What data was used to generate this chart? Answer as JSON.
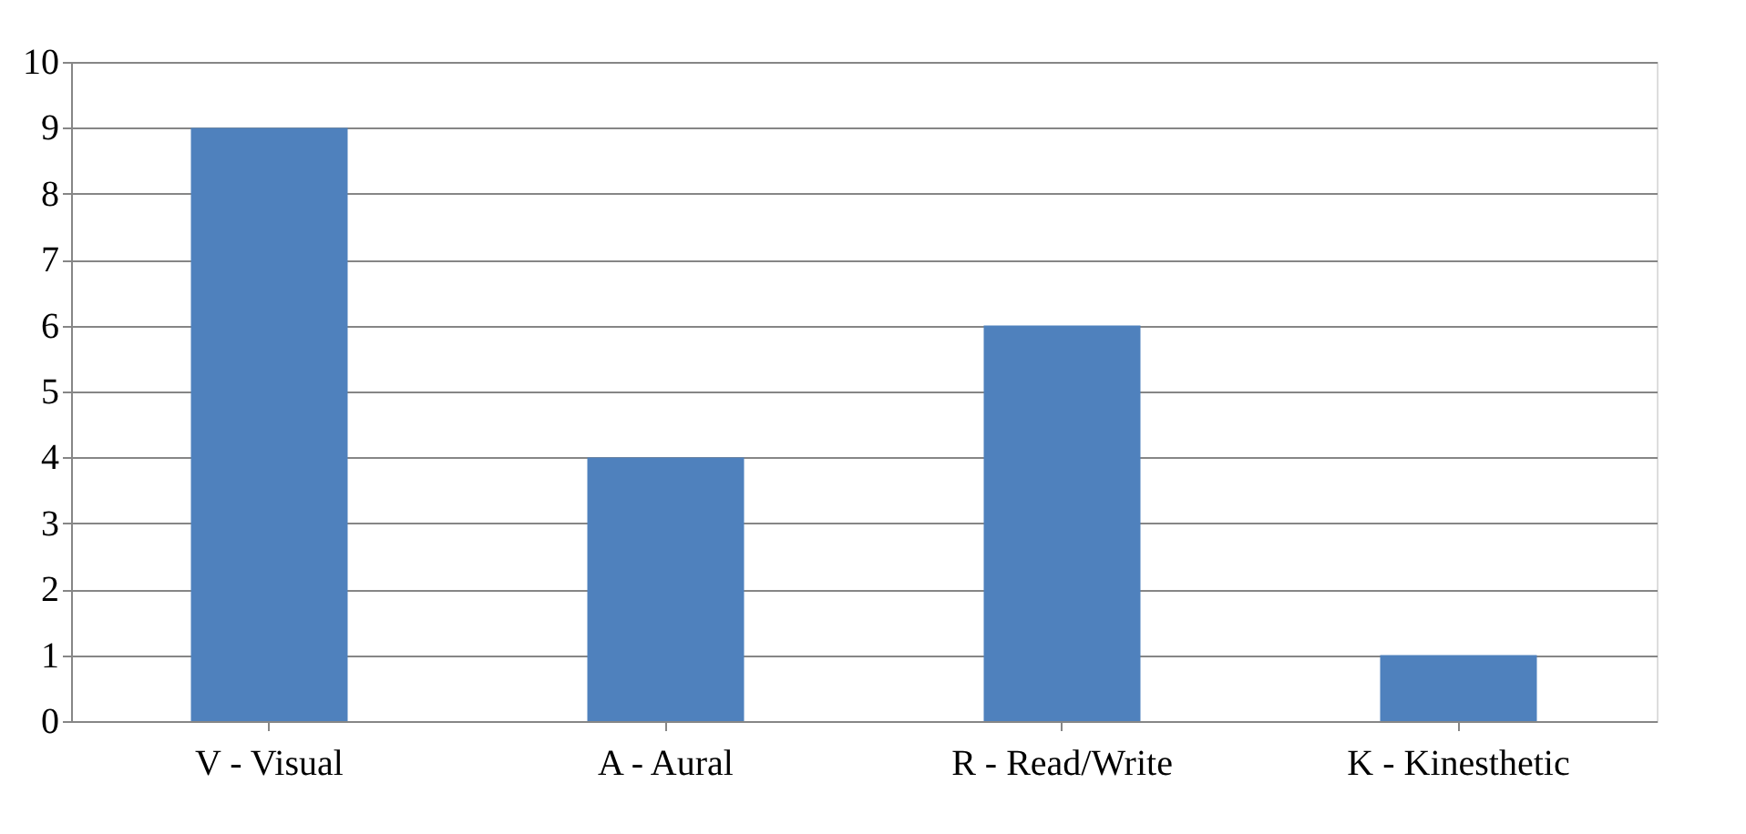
{
  "chart_data": {
    "type": "bar",
    "categories": [
      "V - Visual",
      "A - Aural",
      "R - Read/Write",
      "K - Kinesthetic"
    ],
    "values": [
      9,
      4,
      6,
      1
    ],
    "color": "#4f81bd",
    "ylim": [
      0,
      10
    ],
    "yticks": [
      0,
      1,
      2,
      3,
      4,
      5,
      6,
      7,
      8,
      9,
      10
    ],
    "grid": "y"
  }
}
